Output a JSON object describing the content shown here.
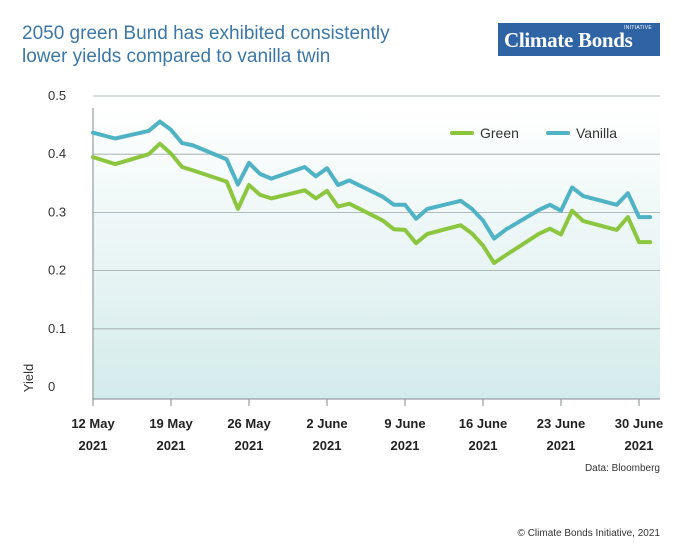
{
  "title_lines": [
    "2050 green Bund has exhibited consistently",
    "lower yields compared to vanilla twin"
  ],
  "logo": {
    "text": "Climate Bonds",
    "subtext": "INITIATIVE"
  },
  "source": "Data: Bloomberg",
  "copyright": "© Climate Bonds Initiative, 2021",
  "chart_data": {
    "type": "line",
    "ylabel": "Yield",
    "xlabel": "",
    "ylim": [
      0,
      0.5
    ],
    "yticks": [
      "0",
      "0.1",
      "0.2",
      "0.3",
      "0.4",
      "0.5"
    ],
    "grid": true,
    "legend_position": "top-right",
    "xticks": [
      {
        "date": "2021-05-12",
        "line1": "12 May",
        "line2": "2021"
      },
      {
        "date": "2021-05-19",
        "line1": "19 May",
        "line2": "2021"
      },
      {
        "date": "2021-05-26",
        "line1": "26 May",
        "line2": "2021"
      },
      {
        "date": "2021-06-02",
        "line1": "2 June",
        "line2": "2021"
      },
      {
        "date": "2021-06-09",
        "line1": "9 June",
        "line2": "2021"
      },
      {
        "date": "2021-06-16",
        "line1": "16 June",
        "line2": "2021"
      },
      {
        "date": "2021-06-23",
        "line1": "23 June",
        "line2": "2021"
      },
      {
        "date": "2021-06-30",
        "line1": "30 June",
        "line2": "2021"
      }
    ],
    "x": [
      "2021-05-12",
      "2021-05-14",
      "2021-05-17",
      "2021-05-18",
      "2021-05-19",
      "2021-05-20",
      "2021-05-21",
      "2021-05-24",
      "2021-05-25",
      "2021-05-26",
      "2021-05-27",
      "2021-05-28",
      "2021-05-31",
      "2021-06-01",
      "2021-06-02",
      "2021-06-03",
      "2021-06-04",
      "2021-06-07",
      "2021-06-08",
      "2021-06-09",
      "2021-06-10",
      "2021-06-11",
      "2021-06-14",
      "2021-06-15",
      "2021-06-16",
      "2021-06-17",
      "2021-06-18",
      "2021-06-21",
      "2021-06-22",
      "2021-06-23",
      "2021-06-24",
      "2021-06-25",
      "2021-06-28",
      "2021-06-29",
      "2021-06-30",
      "2021-07-01"
    ],
    "series": [
      {
        "name": "Green",
        "color": "#8cc63f",
        "values": [
          0.395,
          0.383,
          0.4,
          0.418,
          0.401,
          0.378,
          0.372,
          0.353,
          0.306,
          0.347,
          0.33,
          0.324,
          0.338,
          0.324,
          0.337,
          0.31,
          0.315,
          0.286,
          0.271,
          0.27,
          0.247,
          0.263,
          0.278,
          0.264,
          0.243,
          0.213,
          0.226,
          0.263,
          0.272,
          0.262,
          0.303,
          0.285,
          0.27,
          0.292,
          0.249,
          0.249
        ]
      },
      {
        "name": "Vanilla",
        "color": "#4fb3c5",
        "values": [
          0.437,
          0.427,
          0.44,
          0.456,
          0.442,
          0.419,
          0.415,
          0.391,
          0.348,
          0.385,
          0.366,
          0.358,
          0.378,
          0.362,
          0.376,
          0.347,
          0.355,
          0.327,
          0.313,
          0.313,
          0.289,
          0.306,
          0.32,
          0.306,
          0.286,
          0.255,
          0.27,
          0.304,
          0.313,
          0.303,
          0.343,
          0.328,
          0.313,
          0.333,
          0.292,
          0.292
        ]
      }
    ]
  }
}
